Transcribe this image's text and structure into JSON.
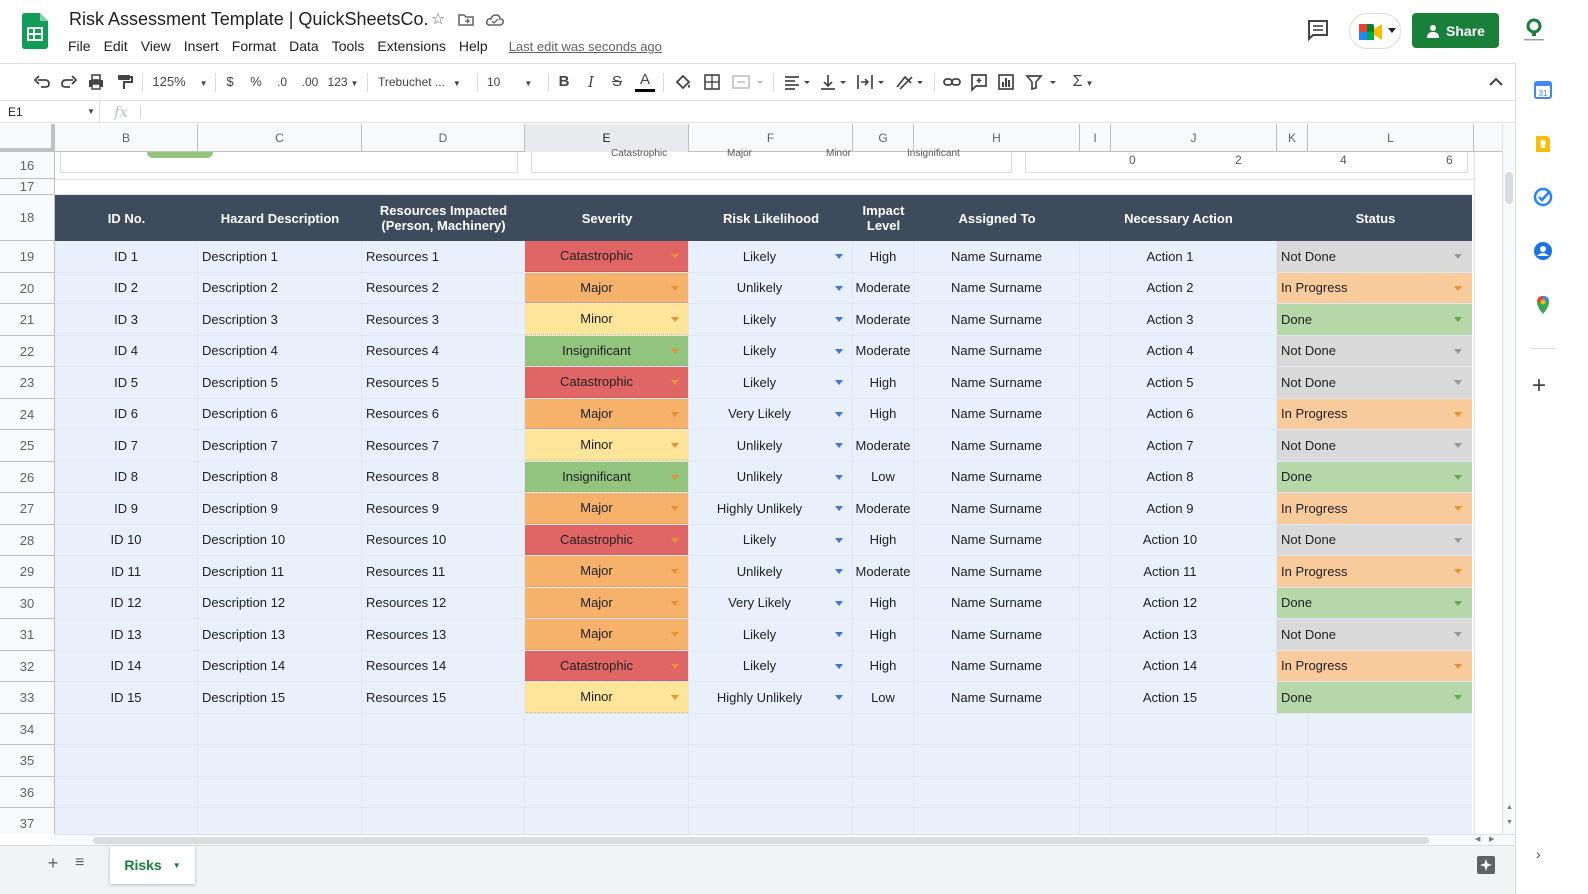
{
  "app": {
    "title": "Risk Assessment Template | QuickSheetsCo.",
    "menu": [
      "File",
      "Edit",
      "View",
      "Insert",
      "Format",
      "Data",
      "Tools",
      "Extensions",
      "Help"
    ],
    "last_edit": "Last edit was seconds ago",
    "share_label": "Share"
  },
  "toolbar": {
    "zoom": "125%",
    "currency": "$",
    "percent": "%",
    "dec_decrease": ".0",
    "dec_increase": ".00",
    "more_formats": "123",
    "font": "Trebuchet ...",
    "font_size": "10",
    "bold": "B",
    "italic": "I",
    "strike": "S",
    "text_color": "A",
    "sum": "Σ"
  },
  "formula_bar": {
    "name_box": "E1",
    "fx": "fx"
  },
  "grid": {
    "columns": [
      "B",
      "C",
      "D",
      "E",
      "F",
      "G",
      "H",
      "I",
      "J",
      "K",
      "L"
    ],
    "selected_column": "E",
    "rows": [
      "16",
      "17",
      "18",
      "19",
      "20",
      "21",
      "22",
      "23",
      "24",
      "25",
      "26",
      "27",
      "28",
      "29",
      "30",
      "31",
      "32",
      "33",
      "34",
      "35",
      "36",
      "37"
    ],
    "chart_remnants": {
      "severity_labels": [
        "Catastrophic",
        "Major",
        "Minor",
        "Insignificant"
      ],
      "axis_ticks": [
        "0",
        "2",
        "4",
        "6"
      ]
    },
    "headers": [
      "ID No.",
      "Hazard Description",
      "Resources Impacted (Person, Machinery)",
      "Severity",
      "Risk Likelihood",
      "Impact Level",
      "Assigned To",
      "Necessary Action",
      "Status"
    ],
    "records": [
      {
        "id": "ID 1",
        "desc": "Description 1",
        "res": "Resources 1",
        "sev": "Catastrophic",
        "lik": "Likely",
        "imp": "High",
        "assign": "Name Surname",
        "act": "Action 1",
        "status": "Not Done"
      },
      {
        "id": "ID 2",
        "desc": "Description 2",
        "res": "Resources 2",
        "sev": "Major",
        "lik": "Unlikely",
        "imp": "Moderate",
        "assign": "Name Surname",
        "act": "Action 2",
        "status": "In Progress"
      },
      {
        "id": "ID 3",
        "desc": "Description 3",
        "res": "Resources 3",
        "sev": "Minor",
        "lik": "Likely",
        "imp": "Moderate",
        "assign": "Name Surname",
        "act": "Action 3",
        "status": "Done"
      },
      {
        "id": "ID 4",
        "desc": "Description 4",
        "res": "Resources 4",
        "sev": "Insignificant",
        "lik": "Likely",
        "imp": "Moderate",
        "assign": "Name Surname",
        "act": "Action 4",
        "status": "Not Done"
      },
      {
        "id": "ID 5",
        "desc": "Description 5",
        "res": "Resources 5",
        "sev": "Catastrophic",
        "lik": "Likely",
        "imp": "High",
        "assign": "Name Surname",
        "act": "Action 5",
        "status": "Not Done"
      },
      {
        "id": "ID 6",
        "desc": "Description 6",
        "res": "Resources 6",
        "sev": "Major",
        "lik": "Very Likely",
        "imp": "High",
        "assign": "Name Surname",
        "act": "Action 6",
        "status": "In Progress"
      },
      {
        "id": "ID 7",
        "desc": "Description 7",
        "res": "Resources 7",
        "sev": "Minor",
        "lik": "Unlikely",
        "imp": "Moderate",
        "assign": "Name Surname",
        "act": "Action 7",
        "status": "Not Done"
      },
      {
        "id": "ID 8",
        "desc": "Description 8",
        "res": "Resources 8",
        "sev": "Insignificant",
        "lik": "Unlikely",
        "imp": "Low",
        "assign": "Name Surname",
        "act": "Action 8",
        "status": "Done"
      },
      {
        "id": "ID 9",
        "desc": "Description 9",
        "res": "Resources 9",
        "sev": "Major",
        "lik": "Highly Unlikely",
        "imp": "Moderate",
        "assign": "Name Surname",
        "act": "Action 9",
        "status": "In Progress"
      },
      {
        "id": "ID 10",
        "desc": "Description 10",
        "res": "Resources 10",
        "sev": "Catastrophic",
        "lik": "Likely",
        "imp": "High",
        "assign": "Name Surname",
        "act": "Action 10",
        "status": "Not Done"
      },
      {
        "id": "ID 11",
        "desc": "Description 11",
        "res": "Resources 11",
        "sev": "Major",
        "lik": "Unlikely",
        "imp": "Moderate",
        "assign": "Name Surname",
        "act": "Action 11",
        "status": "In Progress"
      },
      {
        "id": "ID 12",
        "desc": "Description 12",
        "res": "Resources 12",
        "sev": "Major",
        "lik": "Very Likely",
        "imp": "High",
        "assign": "Name Surname",
        "act": "Action 12",
        "status": "Done"
      },
      {
        "id": "ID 13",
        "desc": "Description 13",
        "res": "Resources 13",
        "sev": "Major",
        "lik": "Likely",
        "imp": "High",
        "assign": "Name Surname",
        "act": "Action 13",
        "status": "Not Done"
      },
      {
        "id": "ID 14",
        "desc": "Description 14",
        "res": "Resources 14",
        "sev": "Catastrophic",
        "lik": "Likely",
        "imp": "High",
        "assign": "Name Surname",
        "act": "Action 14",
        "status": "In Progress"
      },
      {
        "id": "ID 15",
        "desc": "Description 15",
        "res": "Resources 15",
        "sev": "Minor",
        "lik": "Highly Unlikely",
        "imp": "Low",
        "assign": "Name Surname",
        "act": "Action 15",
        "status": "Done"
      }
    ]
  },
  "colors": {
    "header_bg": "#3d4b5c",
    "body_bg": "#e8f0fb",
    "severity": {
      "Catastrophic": "#e06666",
      "Major": "#f6b26b",
      "Minor": "#ffe599",
      "Insignificant": "#93c47d"
    },
    "status": {
      "Not Done": "#d9d9d9",
      "In Progress": "#f9cb9c",
      "Done": "#b6d7a8"
    },
    "dropdown_arrow": {
      "severity": "#e69138",
      "likelihood": "#3c78d8",
      "Not Done": "#999999",
      "In Progress": "#e69138",
      "Done": "#6aa84f"
    }
  },
  "sheets": {
    "active": "Risks"
  },
  "side_panel_icons": [
    "calendar-icon",
    "keep-icon",
    "tasks-icon",
    "contacts-icon",
    "maps-icon",
    "add-icon"
  ]
}
